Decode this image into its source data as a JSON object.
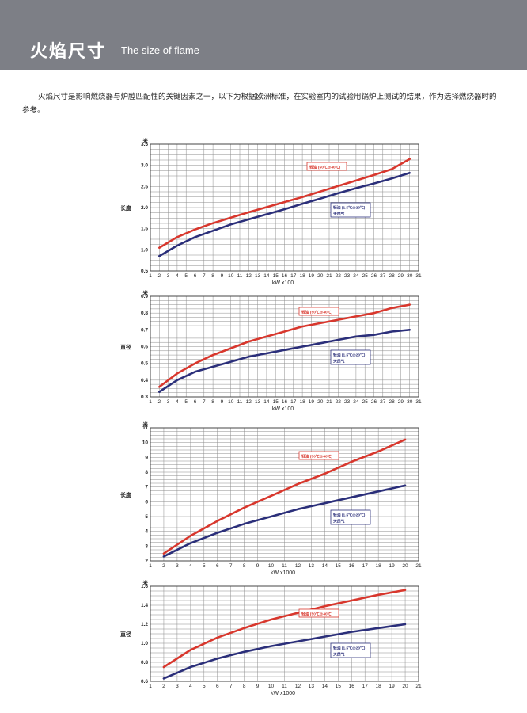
{
  "header": {
    "title_cn": "火焰尺寸",
    "title_en": "The size of flame"
  },
  "intro": "火焰尺寸是影响燃烧器与炉膛匹配性的关键因素之一，以下为根据欧洲标准，在实验室内的试验用锅炉上测试的结果，作为选择燃烧器时的参考。",
  "colors": {
    "oil": "#d8372d",
    "gas": "#2b2f7a",
    "grid": "#8d8d8d",
    "banner": "#7d7f86"
  },
  "chart_data": [
    {
      "type": "line",
      "unit": "米",
      "ylabel": "长度",
      "xlabel": "kW x100",
      "xlim": [
        1,
        31
      ],
      "ylim": [
        0.5,
        3.5
      ],
      "xticks": [
        1,
        2,
        3,
        4,
        5,
        6,
        7,
        8,
        9,
        10,
        11,
        12,
        13,
        14,
        15,
        16,
        17,
        18,
        19,
        20,
        21,
        22,
        23,
        24,
        25,
        26,
        27,
        28,
        29,
        30,
        31
      ],
      "yticks": [
        "0.5",
        "1.0",
        "1.5",
        "2.0",
        "2.5",
        "3.0",
        "3.5"
      ],
      "grid": true,
      "series": [
        {
          "name": "轻油 (50℃@40℃)",
          "color": "#d8372d",
          "label_position": "top-right",
          "x": [
            2,
            4,
            6,
            8,
            10,
            12,
            14,
            16,
            18,
            20,
            22,
            24,
            26,
            28,
            30
          ],
          "y": [
            1.05,
            1.3,
            1.48,
            1.63,
            1.76,
            1.89,
            2.01,
            2.13,
            2.25,
            2.38,
            2.51,
            2.64,
            2.77,
            2.91,
            3.15
          ]
        },
        {
          "name": "轻油 (1.5℃@20℃) 天然气",
          "color": "#2b2f7a",
          "label_position": "middle-right",
          "x": [
            2,
            4,
            6,
            8,
            10,
            12,
            14,
            16,
            18,
            20,
            22,
            24,
            26,
            28,
            30
          ],
          "y": [
            0.85,
            1.1,
            1.3,
            1.45,
            1.6,
            1.72,
            1.84,
            1.96,
            2.09,
            2.21,
            2.34,
            2.46,
            2.57,
            2.69,
            2.82
          ]
        }
      ]
    },
    {
      "type": "line",
      "unit": "米",
      "ylabel": "直径",
      "xlabel": "kW x100",
      "xlim": [
        1,
        31
      ],
      "ylim": [
        0.3,
        0.9
      ],
      "xticks": [
        1,
        2,
        3,
        4,
        5,
        6,
        7,
        8,
        9,
        10,
        11,
        12,
        13,
        14,
        15,
        16,
        17,
        18,
        19,
        20,
        21,
        22,
        23,
        24,
        25,
        26,
        27,
        28,
        29,
        30,
        31
      ],
      "yticks": [
        "0.3",
        "0.4",
        "0.5",
        "0.6",
        "0.7",
        "0.8",
        "0.9"
      ],
      "grid": true,
      "series": [
        {
          "name": "轻油 (50℃@40℃)",
          "color": "#d8372d",
          "label_position": "top-right",
          "x": [
            2,
            4,
            6,
            8,
            10,
            12,
            14,
            16,
            18,
            20,
            22,
            24,
            26,
            28,
            30
          ],
          "y": [
            0.36,
            0.44,
            0.5,
            0.55,
            0.59,
            0.63,
            0.66,
            0.69,
            0.72,
            0.74,
            0.76,
            0.78,
            0.8,
            0.83,
            0.85
          ]
        },
        {
          "name": "轻油 (1.5℃@20℃) 天然气",
          "color": "#2b2f7a",
          "label_position": "middle-right",
          "x": [
            2,
            4,
            6,
            8,
            10,
            12,
            14,
            16,
            18,
            20,
            22,
            24,
            26,
            28,
            30
          ],
          "y": [
            0.33,
            0.4,
            0.45,
            0.48,
            0.51,
            0.54,
            0.56,
            0.58,
            0.6,
            0.62,
            0.64,
            0.66,
            0.67,
            0.69,
            0.7
          ]
        }
      ]
    },
    {
      "type": "line",
      "unit": "米",
      "ylabel": "长度",
      "xlabel": "kW x1000",
      "xlim": [
        1,
        21
      ],
      "ylim": [
        2,
        11
      ],
      "xticks": [
        1,
        2,
        3,
        4,
        5,
        6,
        7,
        8,
        9,
        10,
        11,
        12,
        13,
        14,
        15,
        16,
        17,
        18,
        19,
        20,
        21
      ],
      "yticks": [
        "2",
        "3",
        "4",
        "5",
        "6",
        "7",
        "8",
        "9",
        "10",
        "11"
      ],
      "grid": true,
      "series": [
        {
          "name": "轻油 (50℃@40℃)",
          "color": "#d8372d",
          "label_position": "top-right",
          "x": [
            2,
            4,
            6,
            8,
            10,
            12,
            14,
            16,
            18,
            20
          ],
          "y": [
            2.5,
            3.7,
            4.7,
            5.6,
            6.4,
            7.2,
            7.9,
            8.7,
            9.4,
            10.2
          ]
        },
        {
          "name": "轻油 (1.5℃@20℃) 天然气",
          "color": "#2b2f7a",
          "label_position": "middle-right",
          "x": [
            2,
            4,
            6,
            8,
            10,
            12,
            14,
            16,
            18,
            20
          ],
          "y": [
            2.3,
            3.2,
            3.9,
            4.5,
            5.0,
            5.5,
            5.9,
            6.3,
            6.7,
            7.1
          ]
        }
      ]
    },
    {
      "type": "line",
      "unit": "米",
      "ylabel": "直径",
      "xlabel": "kW x1000",
      "xlim": [
        1,
        21
      ],
      "ylim": [
        0.6,
        1.6
      ],
      "xticks": [
        1,
        2,
        3,
        4,
        5,
        6,
        7,
        8,
        9,
        10,
        11,
        12,
        13,
        14,
        15,
        16,
        17,
        18,
        19,
        20,
        21
      ],
      "yticks": [
        "0.6",
        "0.8",
        "1.0",
        "1.2",
        "1.4",
        "1.6"
      ],
      "grid": true,
      "series": [
        {
          "name": "轻油 (50℃@40℃)",
          "color": "#d8372d",
          "label_position": "top-right",
          "x": [
            2,
            4,
            6,
            8,
            10,
            12,
            14,
            16,
            18,
            20
          ],
          "y": [
            0.75,
            0.93,
            1.06,
            1.16,
            1.25,
            1.32,
            1.39,
            1.45,
            1.51,
            1.56
          ]
        },
        {
          "name": "轻油 (1.5℃@20℃) 天然气",
          "color": "#2b2f7a",
          "label_position": "middle-right",
          "x": [
            2,
            4,
            6,
            8,
            10,
            12,
            14,
            16,
            18,
            20
          ],
          "y": [
            0.63,
            0.75,
            0.84,
            0.91,
            0.97,
            1.02,
            1.07,
            1.12,
            1.16,
            1.2
          ]
        }
      ]
    }
  ]
}
